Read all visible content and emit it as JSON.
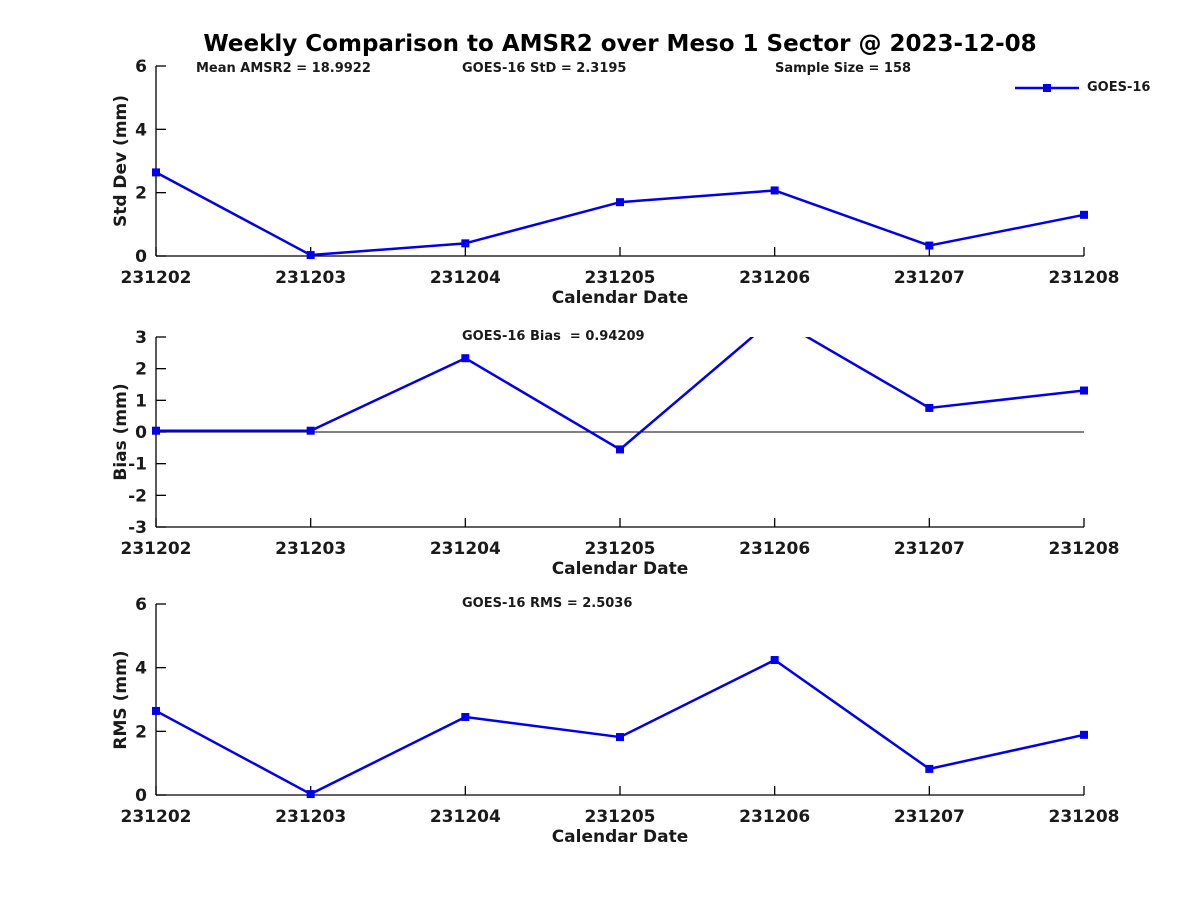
{
  "title": "Weekly Comparison to AMSR2 over Meso 1 Sector @ 2023-12-08",
  "legend": {
    "label": "GOES-16",
    "color": "#0000EE"
  },
  "chart_data": [
    {
      "type": "line",
      "ylabel": "Std Dev (mm)",
      "xlabel": "Calendar Date",
      "ylim": [
        0,
        6
      ],
      "yticks": [
        0,
        2,
        4,
        6
      ],
      "categories": [
        "231202",
        "231203",
        "231204",
        "231205",
        "231206",
        "231207",
        "231208"
      ],
      "series": [
        {
          "name": "GOES-16",
          "color": "#0000EE",
          "marker": "square",
          "values": [
            2.64,
            0.03,
            0.4,
            1.7,
            2.07,
            0.33,
            1.3
          ]
        }
      ],
      "annotations": [
        "Mean AMSR2 = 18.9922",
        "GOES-16 StD = 2.3195",
        "Sample Size = 158"
      ],
      "legend_position": "top-right",
      "grid": false
    },
    {
      "type": "line",
      "ylabel": "Bias (mm)",
      "xlabel": "Calendar Date",
      "ylim": [
        -3,
        3
      ],
      "yticks": [
        3,
        2,
        1,
        0,
        -1,
        -2,
        -3
      ],
      "zero_line": true,
      "categories": [
        "231202",
        "231203",
        "231204",
        "231205",
        "231206",
        "231207",
        "231208"
      ],
      "series": [
        {
          "name": "GOES-16",
          "color": "#0000EE",
          "marker": "square",
          "values": [
            0.04,
            0.04,
            2.33,
            -0.55,
            3.6,
            0.76,
            1.31
          ]
        }
      ],
      "annotations": [
        "GOES-16 Bias  = 0.94209"
      ],
      "grid": false
    },
    {
      "type": "line",
      "ylabel": "RMS (mm)",
      "xlabel": "Calendar Date",
      "ylim": [
        0,
        6
      ],
      "yticks": [
        0,
        2,
        4,
        6
      ],
      "categories": [
        "231202",
        "231203",
        "231204",
        "231205",
        "231206",
        "231207",
        "231208"
      ],
      "series": [
        {
          "name": "GOES-16",
          "color": "#0000EE",
          "marker": "square",
          "values": [
            2.64,
            0.03,
            2.45,
            1.82,
            4.24,
            0.82,
            1.89
          ]
        }
      ],
      "annotations": [
        "GOES-16 RMS = 2.5036"
      ],
      "grid": false
    }
  ]
}
